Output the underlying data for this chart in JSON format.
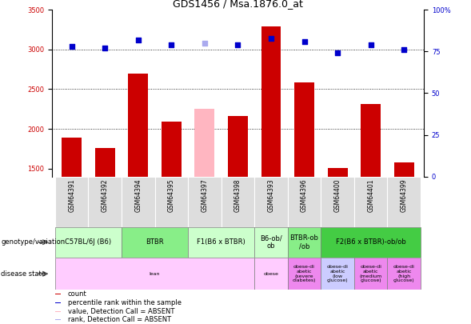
{
  "title": "GDS1456 / Msa.1876.0_at",
  "samples": [
    "GSM64391",
    "GSM64392",
    "GSM64394",
    "GSM64395",
    "GSM64397",
    "GSM64398",
    "GSM64393",
    "GSM64396",
    "GSM64400",
    "GSM64401",
    "GSM64399"
  ],
  "count_values": [
    1890,
    1760,
    2700,
    2090,
    2250,
    2160,
    3290,
    2590,
    1510,
    2310,
    1580
  ],
  "rank_values": [
    78,
    77,
    82,
    79,
    80,
    79,
    83,
    81,
    74,
    79,
    76
  ],
  "bar_colors": [
    "#cc0000",
    "#cc0000",
    "#cc0000",
    "#cc0000",
    "#ffb6c1",
    "#cc0000",
    "#cc0000",
    "#cc0000",
    "#cc0000",
    "#cc0000",
    "#cc0000"
  ],
  "rank_colors": [
    "#0000cc",
    "#0000cc",
    "#0000cc",
    "#0000cc",
    "#aaaaee",
    "#0000cc",
    "#0000cc",
    "#0000cc",
    "#0000cc",
    "#0000cc",
    "#0000cc"
  ],
  "ylim_left": [
    1400,
    3500
  ],
  "ylim_right": [
    0,
    100
  ],
  "yticks_left": [
    1500,
    2000,
    2500,
    3000,
    3500
  ],
  "yticks_right": [
    0,
    25,
    50,
    75,
    100
  ],
  "grid_values": [
    2000,
    2500,
    3000
  ],
  "genotype_groups": [
    {
      "label": "C57BL/6J (B6)",
      "start": 0,
      "end": 2,
      "color": "#ccffcc"
    },
    {
      "label": "BTBR",
      "start": 2,
      "end": 4,
      "color": "#88ee88"
    },
    {
      "label": "F1(B6 x BTBR)",
      "start": 4,
      "end": 6,
      "color": "#ccffcc"
    },
    {
      "label": "B6-ob/\nob",
      "start": 6,
      "end": 7,
      "color": "#ccffcc"
    },
    {
      "label": "BTBR-ob\n/ob",
      "start": 7,
      "end": 8,
      "color": "#88ee88"
    },
    {
      "label": "F2(B6 x BTBR)-ob/ob",
      "start": 8,
      "end": 11,
      "color": "#44cc44"
    }
  ],
  "disease_groups": [
    {
      "label": "lean",
      "start": 0,
      "end": 6,
      "color": "#ffccff"
    },
    {
      "label": "obese",
      "start": 6,
      "end": 7,
      "color": "#ffccff"
    },
    {
      "label": "obese-di\nabetic\n(severe\ndiabetes)",
      "start": 7,
      "end": 8,
      "color": "#ee88ee"
    },
    {
      "label": "obese-di\nabetic\n(low\nglucose)",
      "start": 8,
      "end": 9,
      "color": "#ccccff"
    },
    {
      "label": "obese-di\nabetic\n(medium\nglucose)",
      "start": 9,
      "end": 10,
      "color": "#ee88ee"
    },
    {
      "label": "obese-di\nabetic\n(high\nglucose)",
      "start": 10,
      "end": 11,
      "color": "#ee88ee"
    }
  ],
  "legend_items": [
    {
      "label": "count",
      "color": "#cc0000"
    },
    {
      "label": "percentile rank within the sample",
      "color": "#0000cc"
    },
    {
      "label": "value, Detection Call = ABSENT",
      "color": "#ffb6c1"
    },
    {
      "label": "rank, Detection Call = ABSENT",
      "color": "#aaaaee"
    }
  ],
  "label_fontsize": 6,
  "tick_label_fontsize": 6,
  "sample_fontsize": 5.5,
  "bar_width": 0.6
}
